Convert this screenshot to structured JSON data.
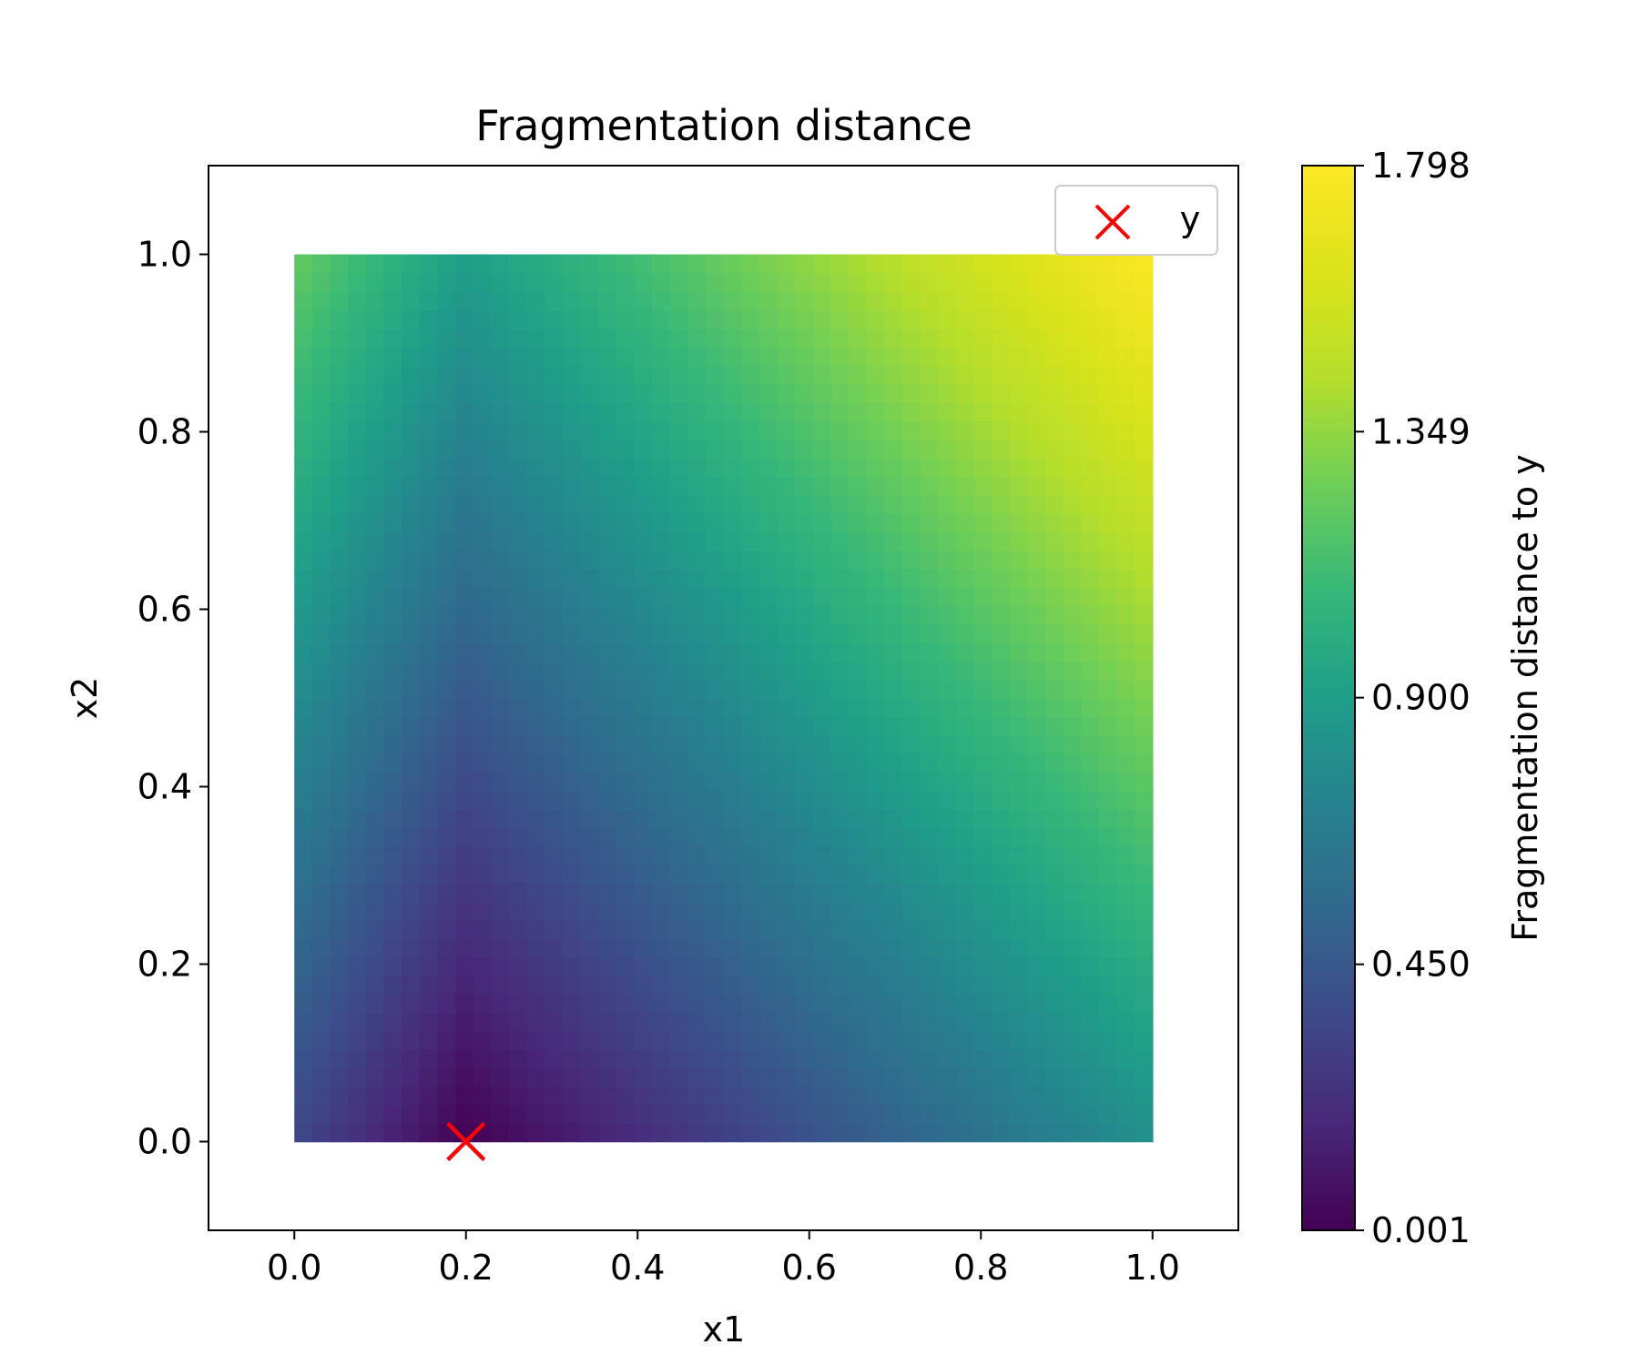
{
  "chart_data": {
    "type": "heatmap",
    "title": "Fragmentation distance",
    "xlabel": "x1",
    "ylabel": "x2",
    "xlim": [
      -0.1,
      1.1
    ],
    "ylim": [
      -0.1,
      1.1
    ],
    "x_ticks": [
      "0.0",
      "0.2",
      "0.4",
      "0.6",
      "0.8",
      "1.0"
    ],
    "y_ticks": [
      "0.0",
      "0.2",
      "0.4",
      "0.6",
      "0.8",
      "1.0"
    ],
    "heatmap_extent": {
      "x": [
        0.0,
        1.0
      ],
      "y": [
        0.0,
        1.0
      ]
    },
    "grid": false,
    "colormap": "viridis",
    "corner_values": {
      "x0_y0": 0.35,
      "x0.2_y0": 0.001,
      "x1_y0": 0.81,
      "x0_y1": 1.23,
      "x1_y1": 1.798
    },
    "colorbar": {
      "label": "Fragmentation distance to y",
      "range": [
        0.001,
        1.798
      ],
      "ticks": [
        "0.001",
        "0.450",
        "0.900",
        "1.349",
        "1.798"
      ]
    },
    "markers": [
      {
        "name": "y",
        "x": 0.2,
        "y": 0.0,
        "marker": "x",
        "color": "#ff0000"
      }
    ],
    "legend": {
      "placement": "top-right",
      "entries": [
        {
          "label": "y",
          "marker": "x",
          "color": "#ff0000"
        }
      ]
    }
  }
}
